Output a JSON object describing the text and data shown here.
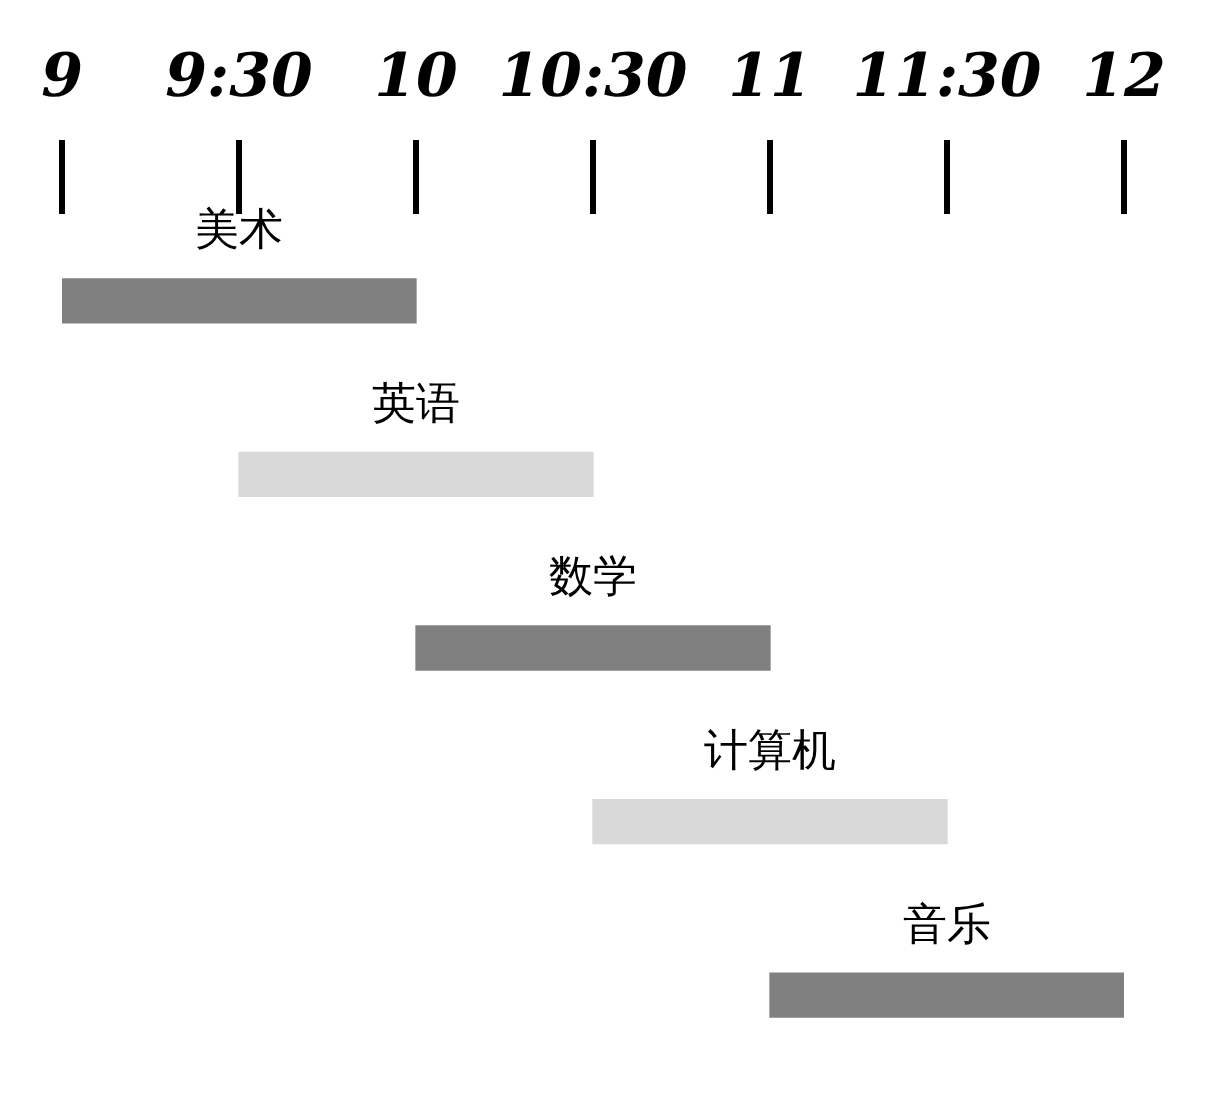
{
  "chart_data": {
    "type": "bar",
    "orientation": "horizontal",
    "categories": [
      "美术",
      "英语",
      "数学",
      "计算机",
      "音乐"
    ],
    "base": [
      9,
      9.5,
      10,
      10.5,
      11
    ],
    "values": [
      1,
      1,
      1,
      1,
      1
    ],
    "colors": [
      "#808080",
      "#d9d9d9",
      "#808080",
      "#d9d9d9",
      "#808080"
    ],
    "xlim": [
      9,
      12
    ],
    "xticks": [
      9,
      {
        "value": 9.5,
        "label": "9:30"
      },
      10,
      {
        "value": 10.5,
        "label": "10:30"
      },
      11,
      {
        "value": 11.5,
        "label": "11:30"
      },
      12
    ],
    "grid": false,
    "legend": false
  }
}
